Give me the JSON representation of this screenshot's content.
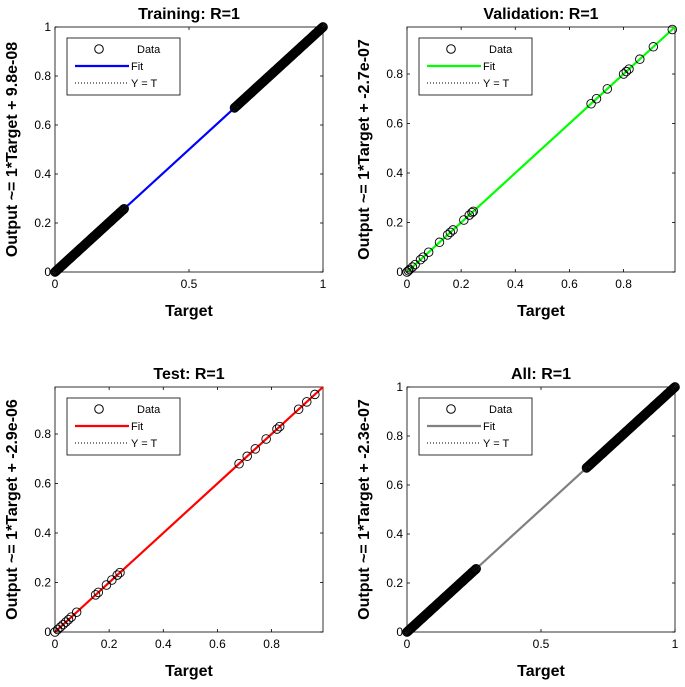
{
  "figure": {
    "background": "#ffffff"
  },
  "chart_data": [
    {
      "type": "scatter",
      "title": "Training: R=1",
      "xlabel": "Target",
      "ylabel": "Output ~= 1*Target + 9.8e-08",
      "xlim": [
        0,
        1
      ],
      "ylim": [
        0,
        1
      ],
      "xticks": [
        0,
        0.5,
        1
      ],
      "xtick_labels": [
        "0",
        "0.5",
        "1"
      ],
      "yticks": [
        0,
        0.2,
        0.4,
        0.6,
        0.8,
        1
      ],
      "ytick_labels": [
        "0",
        "0.2",
        "0.4",
        "0.6",
        "0.8",
        "1"
      ],
      "fit_color": "#0000ff",
      "legend": {
        "location": "top-left",
        "entries": [
          "Data",
          "Fit",
          "Y = T"
        ]
      },
      "fit_line": [
        [
          0,
          0
        ],
        [
          1,
          1
        ]
      ],
      "data_ranges": [
        [
          0,
          0.26
        ],
        [
          0.67,
          0.8
        ],
        [
          0.8,
          0.91
        ],
        [
          0.91,
          1.0
        ]
      ]
    },
    {
      "type": "scatter",
      "title": "Validation: R=1",
      "xlabel": "Target",
      "ylabel": "Output ~= 1*Target + -2.7e-07",
      "xlim": [
        0,
        0.99
      ],
      "ylim": [
        0,
        0.99
      ],
      "xticks": [
        0,
        0.2,
        0.4,
        0.6,
        0.8
      ],
      "xtick_labels": [
        "0",
        "0.2",
        "0.4",
        "0.6",
        "0.8"
      ],
      "yticks": [
        0,
        0.2,
        0.4,
        0.6,
        0.8
      ],
      "ytick_labels": [
        "0",
        "0.2",
        "0.4",
        "0.6",
        "0.8"
      ],
      "fit_color": "#00ff00",
      "legend": {
        "location": "top-left",
        "entries": [
          "Data",
          "Fit",
          "Y = T"
        ]
      },
      "fit_line": [
        [
          0,
          0
        ],
        [
          0.99,
          0.99
        ]
      ],
      "points": [
        0,
        0.005,
        0.01,
        0.02,
        0.03,
        0.05,
        0.06,
        0.08,
        0.12,
        0.15,
        0.16,
        0.17,
        0.21,
        0.23,
        0.24,
        0.245,
        0.68,
        0.7,
        0.74,
        0.8,
        0.81,
        0.82,
        0.86,
        0.91,
        0.98
      ]
    },
    {
      "type": "scatter",
      "title": "Test: R=1",
      "xlabel": "Target",
      "ylabel": "Output ~= 1*Target + -2.9e-06",
      "xlim": [
        0,
        0.99
      ],
      "ylim": [
        0,
        0.99
      ],
      "xticks": [
        0,
        0.2,
        0.4,
        0.6,
        0.8
      ],
      "xtick_labels": [
        "0",
        "0.2",
        "0.4",
        "0.6",
        "0.8"
      ],
      "yticks": [
        0,
        0.2,
        0.4,
        0.6,
        0.8
      ],
      "ytick_labels": [
        "0",
        "0.2",
        "0.4",
        "0.6",
        "0.8"
      ],
      "fit_color": "#ff0000",
      "legend": {
        "location": "top-left",
        "entries": [
          "Data",
          "Fit",
          "Y = T"
        ]
      },
      "fit_line": [
        [
          0,
          0
        ],
        [
          0.99,
          0.99
        ]
      ],
      "points": [
        0,
        0.01,
        0.02,
        0.03,
        0.04,
        0.05,
        0.06,
        0.08,
        0.15,
        0.16,
        0.19,
        0.21,
        0.23,
        0.24,
        0.68,
        0.71,
        0.74,
        0.78,
        0.82,
        0.83,
        0.9,
        0.93,
        0.96
      ]
    },
    {
      "type": "scatter",
      "title": "All: R=1",
      "xlabel": "Target",
      "ylabel": "Output ~= 1*Target + -2.3e-07",
      "xlim": [
        0,
        1
      ],
      "ylim": [
        0,
        1
      ],
      "xticks": [
        0,
        0.5,
        1
      ],
      "xtick_labels": [
        "0",
        "0.5",
        "1"
      ],
      "yticks": [
        0,
        0.2,
        0.4,
        0.6,
        0.8,
        1
      ],
      "ytick_labels": [
        "0",
        "0.2",
        "0.4",
        "0.6",
        "0.8",
        "1"
      ],
      "fit_color": "#808080",
      "legend": {
        "location": "top-left",
        "entries": [
          "Data",
          "Fit",
          "Y = T"
        ]
      },
      "fit_line": [
        [
          0,
          0
        ],
        [
          1,
          1
        ]
      ],
      "data_ranges": [
        [
          0,
          0.26
        ],
        [
          0.67,
          1.0
        ]
      ]
    }
  ]
}
